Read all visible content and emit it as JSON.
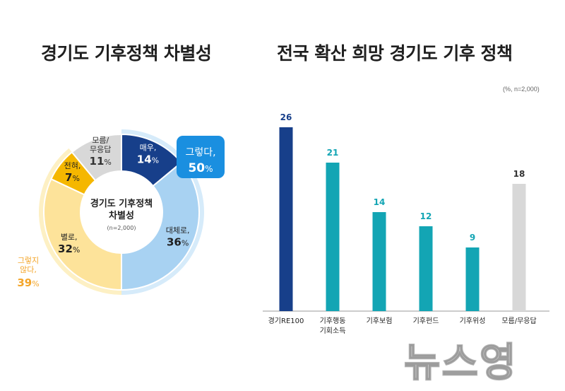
{
  "titles": {
    "left": "경기도 기후정책 차별성",
    "right": "전국 확산 희망 경기도 기후 정책"
  },
  "colors": {
    "navy": "#173f8a",
    "lightblue": "#a8d2f2",
    "paleyellow": "#fde39a",
    "gold": "#f5b700",
    "gray": "#d8d8d8",
    "teal": "#13a5b4",
    "callout": "#1a8fe0",
    "outer_yellow": "#f3a52a"
  },
  "chart_data": [
    {
      "type": "pie",
      "center_label": [
        "경기도 기후정책",
        "차별성"
      ],
      "center_note": "(n=2,000)",
      "slices": [
        {
          "label": "매우,",
          "value": 14,
          "display": "14%"
        },
        {
          "label": "대체로,",
          "value": 36,
          "display": "36%"
        },
        {
          "label": "별로,",
          "value": 32,
          "display": "32%"
        },
        {
          "label": "전혀,",
          "value": 7,
          "display": "7%"
        },
        {
          "label": "모름/\n무응답",
          "value": 11,
          "display": "11%"
        }
      ],
      "groups": [
        {
          "label": "그렇다,",
          "display": "50%",
          "value": 50
        },
        {
          "label": "그렇지\n않다,",
          "display": "39%",
          "value": 39
        }
      ]
    },
    {
      "type": "bar",
      "unit_note": "(%, n=2,000)",
      "categories": [
        "경기RE100",
        "기후행동\n기회소득",
        "기후보험",
        "기후펀드",
        "기후위성",
        "모름/무응답"
      ],
      "values": [
        26,
        21,
        14,
        12,
        9,
        18
      ]
    }
  ],
  "watermark": "뉴스영"
}
